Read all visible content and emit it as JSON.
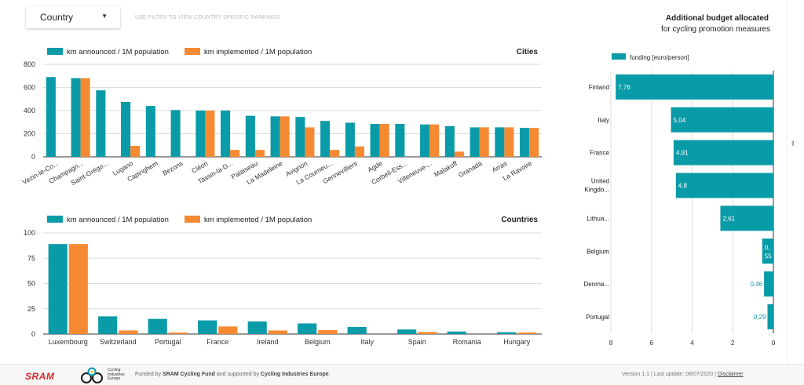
{
  "filter": {
    "label": "Country",
    "hint": "USE FILTER TO VIEW COUNTRY SPECIFIC RANKINGS"
  },
  "colors": {
    "teal": "#0a9ba8",
    "orange": "#f58a33",
    "grid": "#dddddd",
    "axis": "#333333"
  },
  "chart_data": [
    {
      "type": "bar",
      "title": "Cities",
      "ylim": [
        0,
        800
      ],
      "yticks": [
        0,
        200,
        400,
        600,
        800
      ],
      "legend_position": "top-left",
      "grid": true,
      "categories": [
        "Vezin-le-Co...",
        "Champagn...",
        "Saint-Grégo...",
        "Lugano",
        "Capinghem",
        "Bezons",
        "Cléon",
        "Tassin-la-D...",
        "Palaiseau",
        "La Madeleine",
        "Avignon",
        "La Courneu...",
        "Gennevilliers",
        "Agde",
        "Corbeil-Ess...",
        "Villeneuve-...",
        "Malakoff",
        "Granada",
        "Arras",
        "La Ravoire"
      ],
      "series": [
        {
          "name": "km announced / 1M population",
          "color": "#0a9ba8",
          "values": [
            690,
            680,
            575,
            475,
            440,
            405,
            400,
            400,
            355,
            350,
            345,
            310,
            295,
            285,
            285,
            280,
            265,
            255,
            255,
            250
          ]
        },
        {
          "name": "km implemented / 1M population",
          "color": "#f58a33",
          "values": [
            0,
            680,
            0,
            95,
            0,
            0,
            400,
            60,
            60,
            350,
            255,
            60,
            90,
            285,
            0,
            280,
            45,
            255,
            255,
            250
          ]
        }
      ]
    },
    {
      "type": "bar",
      "title": "Countries",
      "ylim": [
        0,
        100
      ],
      "yticks": [
        0,
        25,
        50,
        75,
        100
      ],
      "legend_position": "top-left",
      "grid": true,
      "categories": [
        "Luxembourg",
        "Switzerland",
        "Portugal",
        "France",
        "Ireland",
        "Belgium",
        "Italy",
        "Spain",
        "Romania",
        "Hungary"
      ],
      "series": [
        {
          "name": "km announced / 1M population",
          "color": "#0a9ba8",
          "values": [
            89,
            17.5,
            15,
            13.5,
            12.5,
            10.5,
            7,
            4.5,
            2.5,
            1.8
          ]
        },
        {
          "name": "km implemented / 1M population",
          "color": "#f58a33",
          "values": [
            89,
            3.5,
            1.5,
            7.5,
            3.5,
            4,
            0,
            2,
            0,
            1.5
          ]
        }
      ]
    },
    {
      "type": "bar",
      "orientation": "horizontal",
      "title": "Additional budget allocated",
      "subtitle": "for cycling promotion measures",
      "xlim": [
        0,
        8
      ],
      "xticks": [
        8,
        6,
        4,
        2,
        0
      ],
      "x_reversed": true,
      "legend_position": "top-left",
      "grid": true,
      "categories": [
        "Finland",
        "Italy",
        "France",
        "United Kingdo...",
        "Lithua...",
        "Belgium",
        "Denma...",
        "Portugal"
      ],
      "series": [
        {
          "name": "funding [euro/person]",
          "color": "#0a9ba8",
          "values": [
            7.76,
            5.04,
            4.91,
            4.8,
            2.61,
            0.55,
            0.46,
            0.29
          ],
          "labels": [
            "7,76",
            "5,04",
            "4,91",
            "4,8",
            "2,61",
            "0,55",
            "0,46",
            "0,29"
          ]
        }
      ]
    }
  ],
  "footer": {
    "brand": "SRAM",
    "logo_text": [
      "Cycling",
      "Industries",
      "Europe"
    ],
    "funded_prefix": "Funded by ",
    "funded_org1": "SRAM Cycling Fund",
    "funded_mid": " and supported by ",
    "funded_org2": "Cycling Industries Europe",
    "funded_suffix": ".",
    "version_text": "Version 1.1  |  Last update: 08/07/2020  |  ",
    "disclaimer": "Disclaimer"
  }
}
